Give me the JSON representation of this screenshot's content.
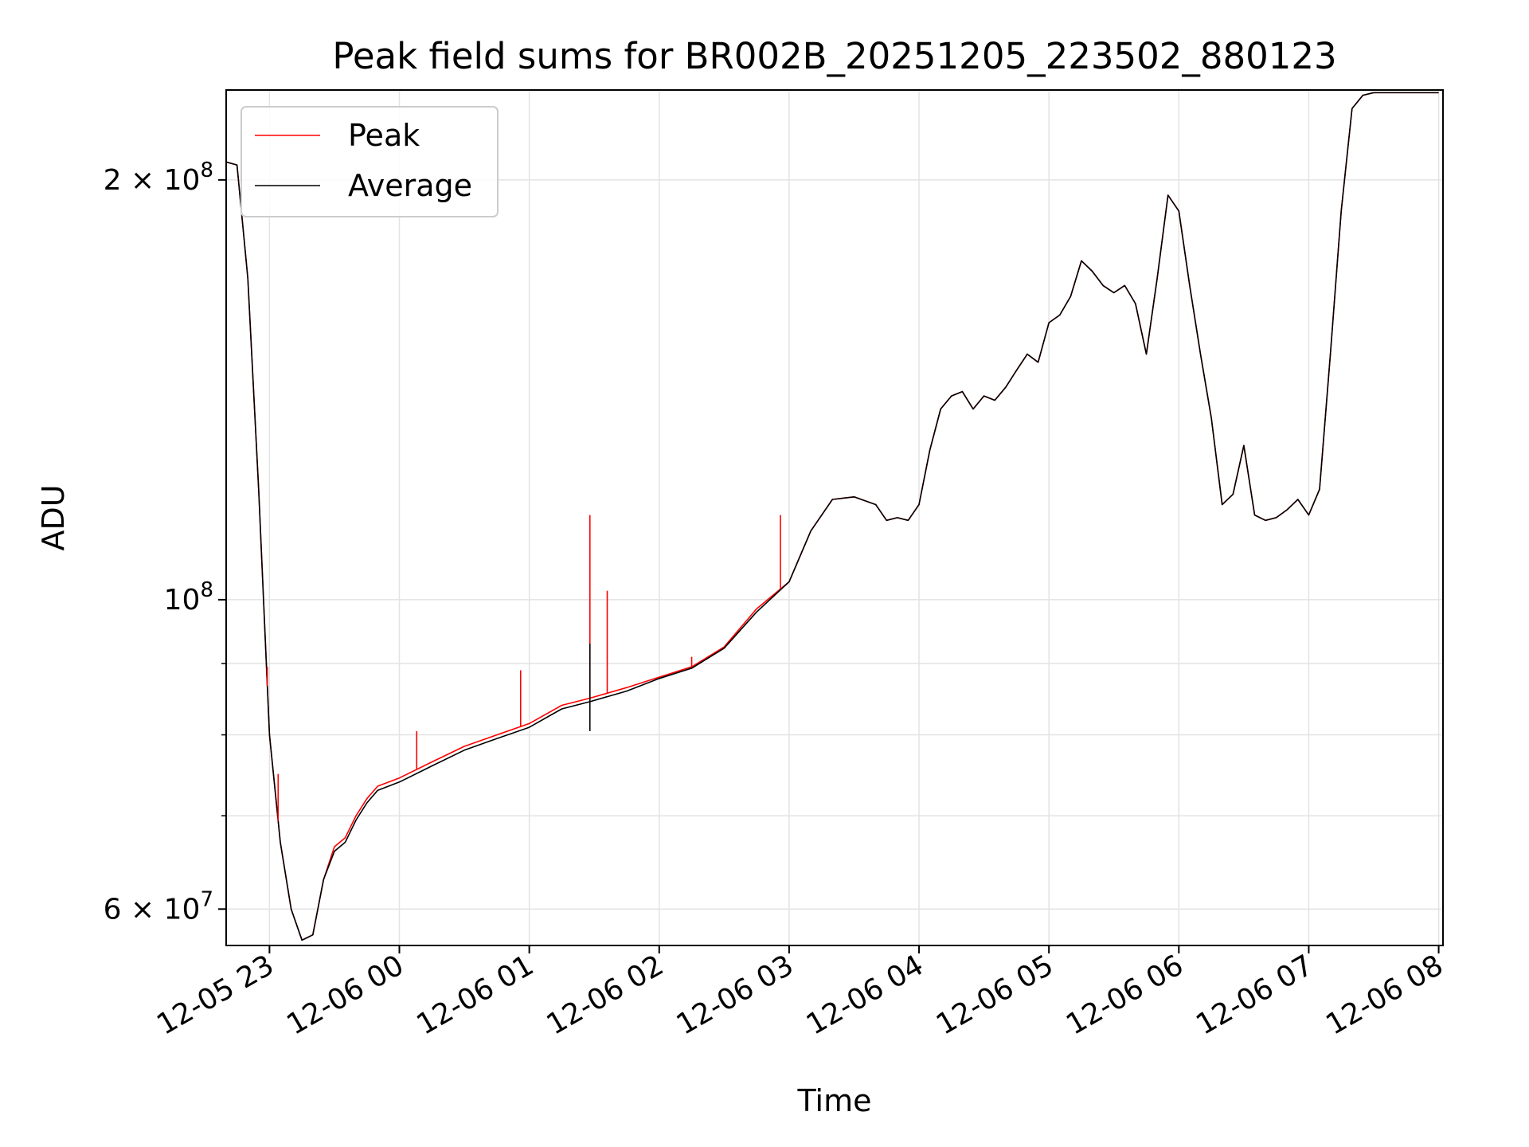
{
  "chart_data": {
    "type": "line",
    "title": "Peak field sums for BR002B_20251205_223502_880123",
    "xlabel": "Time",
    "ylabel": "ADU",
    "yscale": "log",
    "ylim": [
      56500000,
      232000000
    ],
    "xlim": [
      "2025-12-05 22:40",
      "2025-12-06 08:02"
    ],
    "grid": true,
    "legend_position": "top-left",
    "x_ticks": [
      "12-05 23",
      "12-06 00",
      "12-06 01",
      "12-06 02",
      "12-06 03",
      "12-06 04",
      "12-06 05",
      "12-06 06",
      "12-06 07",
      "12-06 08"
    ],
    "y_ticks": [
      {
        "mantissa": "6",
        "base": "10",
        "exponent": "7",
        "value": 60000000
      },
      {
        "mantissa": "",
        "base": "10",
        "exponent": "8",
        "value": 100000000
      },
      {
        "mantissa": "2",
        "base": "10",
        "exponent": "8",
        "value": 200000000
      }
    ],
    "y_minor_ticks": [
      70000000,
      80000000,
      90000000
    ],
    "x": [
      "2025-12-05 22:40",
      "2025-12-05 22:45",
      "2025-12-05 22:50",
      "2025-12-05 22:55",
      "2025-12-05 23:00",
      "2025-12-05 23:05",
      "2025-12-05 23:10",
      "2025-12-05 23:15",
      "2025-12-05 23:20",
      "2025-12-05 23:25",
      "2025-12-05 23:30",
      "2025-12-05 23:35",
      "2025-12-05 23:40",
      "2025-12-05 23:45",
      "2025-12-05 23:50",
      "2025-12-06 00:00",
      "2025-12-06 00:15",
      "2025-12-06 00:30",
      "2025-12-06 00:45",
      "2025-12-06 01:00",
      "2025-12-06 01:15",
      "2025-12-06 01:28",
      "2025-12-06 01:45",
      "2025-12-06 02:00",
      "2025-12-06 02:15",
      "2025-12-06 02:30",
      "2025-12-06 02:45",
      "2025-12-06 03:00",
      "2025-12-06 03:10",
      "2025-12-06 03:20",
      "2025-12-06 03:30",
      "2025-12-06 03:40",
      "2025-12-06 03:45",
      "2025-12-06 03:50",
      "2025-12-06 03:55",
      "2025-12-06 04:00",
      "2025-12-06 04:05",
      "2025-12-06 04:10",
      "2025-12-06 04:15",
      "2025-12-06 04:20",
      "2025-12-06 04:25",
      "2025-12-06 04:30",
      "2025-12-06 04:35",
      "2025-12-06 04:40",
      "2025-12-06 04:45",
      "2025-12-06 04:50",
      "2025-12-06 04:55",
      "2025-12-06 05:00",
      "2025-12-06 05:05",
      "2025-12-06 05:10",
      "2025-12-06 05:15",
      "2025-12-06 05:20",
      "2025-12-06 05:25",
      "2025-12-06 05:30",
      "2025-12-06 05:35",
      "2025-12-06 05:40",
      "2025-12-06 05:45",
      "2025-12-06 05:50",
      "2025-12-06 05:55",
      "2025-12-06 06:00",
      "2025-12-06 06:05",
      "2025-12-06 06:10",
      "2025-12-06 06:15",
      "2025-12-06 06:20",
      "2025-12-06 06:25",
      "2025-12-06 06:30",
      "2025-12-06 06:35",
      "2025-12-06 06:40",
      "2025-12-06 06:45",
      "2025-12-06 06:50",
      "2025-12-06 06:55",
      "2025-12-06 07:00",
      "2025-12-06 07:05",
      "2025-12-06 07:10",
      "2025-12-06 07:15",
      "2025-12-06 07:20",
      "2025-12-06 07:25",
      "2025-12-06 07:30",
      "2025-12-06 07:35",
      "2025-12-06 07:40",
      "2025-12-06 07:45",
      "2025-12-06 07:50",
      "2025-12-06 07:55",
      "2025-12-06 08:00"
    ],
    "series": [
      {
        "name": "Peak",
        "color": "#ff0000",
        "values": [
          206000000,
          205000000,
          170000000,
          120000000,
          80000000,
          67000000,
          60000000,
          57000000,
          57500000,
          63000000,
          66500000,
          67500000,
          70000000,
          72000000,
          73500000,
          74500000,
          76500000,
          78500000,
          80000000,
          81500000,
          84000000,
          85000000,
          86500000,
          88000000,
          89500000,
          92500000,
          98500000,
          103000000,
          112000000,
          118000000,
          118500000,
          117000000,
          114000000,
          114500000,
          114000000,
          117000000,
          128000000,
          137000000,
          140000000,
          141000000,
          137000000,
          140000000,
          139000000,
          142000000,
          146000000,
          150000000,
          148000000,
          158000000,
          160000000,
          165000000,
          175000000,
          172000000,
          168000000,
          166000000,
          168000000,
          163000000,
          150000000,
          170000000,
          195000000,
          190000000,
          168000000,
          150000000,
          135000000,
          117000000,
          119000000,
          129000000,
          115000000,
          114000000,
          114500000,
          116000000,
          118000000,
          115000000,
          120000000,
          150000000,
          190000000,
          225000000,
          230000000,
          231000000,
          231000000,
          231000000,
          231000000,
          231000000,
          231000000,
          231000000
        ]
      },
      {
        "name": "Average",
        "color": "#000000",
        "values": [
          206000000,
          205000000,
          170000000,
          120000000,
          80000000,
          67000000,
          60000000,
          57000000,
          57500000,
          63000000,
          66000000,
          67000000,
          69500000,
          71500000,
          73000000,
          74000000,
          76000000,
          78000000,
          79500000,
          81000000,
          83500000,
          84500000,
          86000000,
          87800000,
          89300000,
          92300000,
          98000000,
          103000000,
          112000000,
          118000000,
          118500000,
          117000000,
          114000000,
          114500000,
          114000000,
          117000000,
          128000000,
          137000000,
          140000000,
          141000000,
          137000000,
          140000000,
          139000000,
          142000000,
          146000000,
          150000000,
          148000000,
          158000000,
          160000000,
          165000000,
          175000000,
          172000000,
          168000000,
          166000000,
          168000000,
          163000000,
          150000000,
          170000000,
          195000000,
          190000000,
          168000000,
          150000000,
          135000000,
          117000000,
          119000000,
          129000000,
          115000000,
          114000000,
          114500000,
          116000000,
          118000000,
          115000000,
          120000000,
          150000000,
          190000000,
          225000000,
          230000000,
          231000000,
          231000000,
          231000000,
          231000000,
          231000000,
          231000000,
          231000000
        ]
      }
    ],
    "peak_spikes": [
      {
        "x": "2025-12-05 22:59",
        "y": 89500000
      },
      {
        "x": "2025-12-05 23:04",
        "y": 75000000
      },
      {
        "x": "2025-12-06 00:08",
        "y": 80500000
      },
      {
        "x": "2025-12-06 00:56",
        "y": 89000000
      },
      {
        "x": "2025-12-06 01:28",
        "y": 115000000
      },
      {
        "x": "2025-12-06 01:36",
        "y": 101500000
      },
      {
        "x": "2025-12-06 02:15",
        "y": 91000000
      },
      {
        "x": "2025-12-06 02:56",
        "y": 115000000
      }
    ],
    "average_spikes": [
      {
        "x": "2025-12-06 01:28",
        "y": 93000000,
        "low": 80500000
      }
    ]
  }
}
